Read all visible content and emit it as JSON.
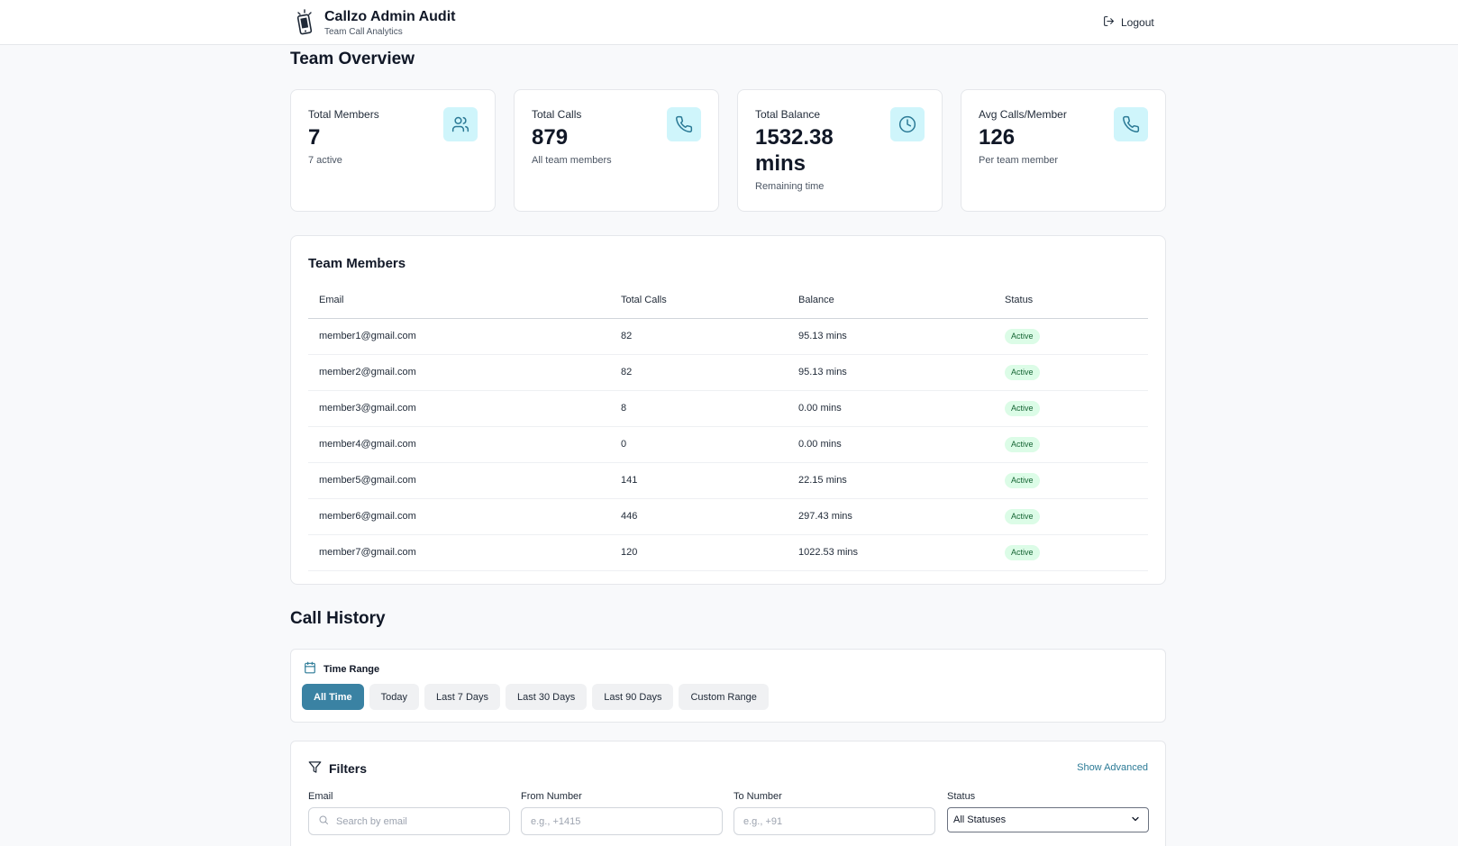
{
  "header": {
    "title": "Callzo Admin Audit",
    "subtitle": "Team Call Analytics",
    "logout_label": "Logout"
  },
  "overview": {
    "title": "Team Overview",
    "cards": [
      {
        "label": "Total Members",
        "value": "7",
        "sub": "7 active",
        "icon": "users-icon"
      },
      {
        "label": "Total Calls",
        "value": "879",
        "sub": "All team members",
        "icon": "phone-icon"
      },
      {
        "label": "Total Balance",
        "value": "1532.38 mins",
        "sub": "Remaining time",
        "icon": "clock-icon"
      },
      {
        "label": "Avg Calls/Member",
        "value": "126",
        "sub": "Per team member",
        "icon": "phone-icon"
      }
    ]
  },
  "members": {
    "title": "Team Members",
    "columns": [
      "Email",
      "Total Calls",
      "Balance",
      "Status"
    ],
    "rows": [
      {
        "email": "member1@gmail.com",
        "calls": "82",
        "balance": "95.13 mins",
        "status": "Active"
      },
      {
        "email": "member2@gmail.com",
        "calls": "82",
        "balance": "95.13 mins",
        "status": "Active"
      },
      {
        "email": "member3@gmail.com",
        "calls": "8",
        "balance": "0.00 mins",
        "status": "Active"
      },
      {
        "email": "member4@gmail.com",
        "calls": "0",
        "balance": "0.00 mins",
        "status": "Active"
      },
      {
        "email": "member5@gmail.com",
        "calls": "141",
        "balance": "22.15 mins",
        "status": "Active"
      },
      {
        "email": "member6@gmail.com",
        "calls": "446",
        "balance": "297.43 mins",
        "status": "Active"
      },
      {
        "email": "member7@gmail.com",
        "calls": "120",
        "balance": "1022.53 mins",
        "status": "Active"
      }
    ]
  },
  "history": {
    "title": "Call History",
    "time_range": {
      "label": "Time Range",
      "options": [
        "All Time",
        "Today",
        "Last 7 Days",
        "Last 30 Days",
        "Last 90 Days",
        "Custom Range"
      ],
      "selected": "All Time"
    },
    "filters": {
      "title": "Filters",
      "show_advanced": "Show Advanced",
      "email": {
        "label": "Email",
        "placeholder": "Search by email"
      },
      "from": {
        "label": "From Number",
        "placeholder": "e.g., +1415"
      },
      "to": {
        "label": "To Number",
        "placeholder": "e.g., +91"
      },
      "status": {
        "label": "Status",
        "value": "All Statuses"
      }
    }
  },
  "colors": {
    "accent": "#3a82a3",
    "icon_bg": "#cff5fb",
    "icon_stroke": "#2b7a96",
    "badge_bg": "#dcfce7",
    "badge_text": "#166534"
  }
}
